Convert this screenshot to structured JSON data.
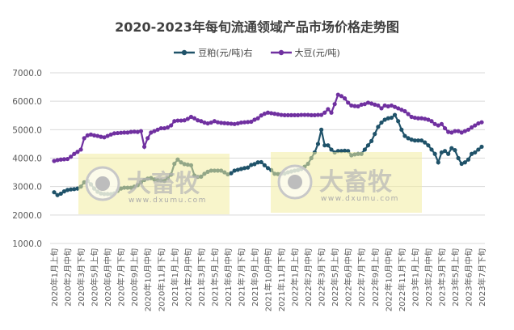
{
  "chart_data": {
    "type": "line",
    "title": "2020-2023年每旬流通领域产品市场价格走势图",
    "ylim": [
      1000,
      7000
    ],
    "yticks": [
      "7000.0",
      "6000.0",
      "5000.0",
      "4000.0",
      "3000.0",
      "2000.0",
      "1000.0"
    ],
    "grid": true,
    "legend_position": "top",
    "x_labels": [
      "2020年1月上旬",
      "2020年2月中旬",
      "2020年3月下旬",
      "2020年5月上旬",
      "2020年6月中旬",
      "2020年7月下旬",
      "2020年9月上旬",
      "2020年10月中旬",
      "2020年11月下旬",
      "2021年1月上旬",
      "2021年2月中旬",
      "2021年3月下旬",
      "2021年5月上旬",
      "2021年6月中旬",
      "2021年7月下旬",
      "2021年9月上旬",
      "2021年10月中旬",
      "2021年11月下旬",
      "2022年1月上旬",
      "2022年2月中旬",
      "2022年3月下旬",
      "2022年5月上旬",
      "2022年6月中旬",
      "2022年7月下旬",
      "2022年9月上旬",
      "2022年10月中旬",
      "2022年11月下旬",
      "2023年1月上旬",
      "2023年2月中旬",
      "2023年3月下旬",
      "2023年5月上旬",
      "2023年6月中旬",
      "2023年7月下旬"
    ],
    "series": [
      {
        "name": "豆粕(元/吨)右",
        "color": "#1f5269",
        "values": [
          2800,
          2700,
          2750,
          2830,
          2880,
          2900,
          2910,
          2930,
          3000,
          3150,
          3200,
          3080,
          2930,
          2820,
          2760,
          2740,
          2740,
          2735,
          2760,
          2850,
          2930,
          2960,
          2960,
          2960,
          3000,
          3050,
          3150,
          3230,
          3280,
          3300,
          3250,
          3230,
          3220,
          3200,
          3300,
          3420,
          3800,
          3950,
          3850,
          3790,
          3770,
          3750,
          3390,
          3340,
          3350,
          3450,
          3520,
          3560,
          3560,
          3560,
          3560,
          3500,
          3430,
          3470,
          3560,
          3590,
          3620,
          3650,
          3670,
          3760,
          3790,
          3850,
          3860,
          3750,
          3650,
          3580,
          3450,
          3440,
          3450,
          3460,
          3500,
          3530,
          3560,
          3580,
          3620,
          3700,
          3800,
          4000,
          4200,
          4500,
          5000,
          4450,
          4450,
          4300,
          4200,
          4250,
          4250,
          4260,
          4250,
          4100,
          4130,
          4150,
          4150,
          4300,
          4450,
          4600,
          4850,
          5100,
          5250,
          5350,
          5400,
          5420,
          5520,
          5300,
          5000,
          4780,
          4700,
          4650,
          4620,
          4620,
          4620,
          4550,
          4450,
          4300,
          4150,
          3850,
          4200,
          4250,
          4150,
          4350,
          4280,
          4000,
          3800,
          3850,
          3950,
          4150,
          4200,
          4300,
          4400
        ]
      },
      {
        "name": "大豆(元/吨)",
        "color": "#7030a0",
        "values": [
          3900,
          3930,
          3950,
          3960,
          3970,
          4050,
          4150,
          4220,
          4300,
          4700,
          4800,
          4830,
          4800,
          4780,
          4750,
          4730,
          4780,
          4830,
          4870,
          4880,
          4890,
          4900,
          4900,
          4920,
          4930,
          4920,
          4950,
          4400,
          4700,
          4900,
          4950,
          5000,
          5050,
          5050,
          5080,
          5150,
          5300,
          5320,
          5320,
          5330,
          5380,
          5450,
          5400,
          5330,
          5300,
          5250,
          5220,
          5250,
          5300,
          5260,
          5240,
          5230,
          5220,
          5210,
          5200,
          5220,
          5250,
          5260,
          5270,
          5280,
          5350,
          5400,
          5500,
          5560,
          5600,
          5580,
          5560,
          5540,
          5520,
          5510,
          5510,
          5510,
          5510,
          5510,
          5520,
          5520,
          5520,
          5510,
          5510,
          5520,
          5520,
          5600,
          5720,
          5600,
          5900,
          6230,
          6180,
          6100,
          5950,
          5850,
          5830,
          5820,
          5880,
          5900,
          5950,
          5920,
          5880,
          5850,
          5750,
          5850,
          5820,
          5850,
          5800,
          5750,
          5700,
          5650,
          5550,
          5450,
          5420,
          5400,
          5400,
          5380,
          5350,
          5300,
          5200,
          5150,
          5200,
          5050,
          4920,
          4900,
          4950,
          4950,
          4900,
          4950,
          5000,
          5080,
          5150,
          5220,
          5260
        ]
      }
    ]
  },
  "watermark": {
    "brand": "大畜牧",
    "url": "www.dxumu.com"
  }
}
